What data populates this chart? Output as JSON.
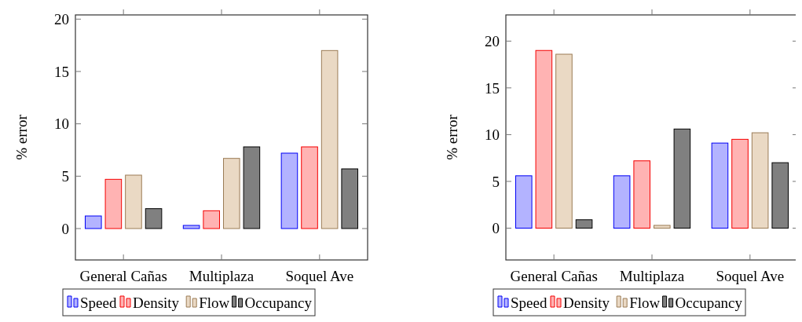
{
  "chart_data": [
    {
      "type": "bar",
      "ylabel": "% error",
      "categories": [
        "General Cañas",
        "Multiplaza",
        "Soquel Ave"
      ],
      "ylim": [
        -3,
        20.4
      ],
      "yticks": [
        0,
        5,
        10,
        15,
        20
      ],
      "legend": "bottom",
      "grid": false,
      "series": [
        {
          "name": "Speed",
          "color": "#b3b3ff",
          "values": [
            1.2,
            0.3,
            7.2
          ]
        },
        {
          "name": "Density",
          "color": "#ffb3b3",
          "values": [
            4.7,
            1.7,
            7.8
          ]
        },
        {
          "name": "Flow",
          "color": "#ead9c4",
          "values": [
            5.1,
            6.7,
            17
          ]
        },
        {
          "name": "Occupancy",
          "color": "#808080",
          "values": [
            1.9,
            7.8,
            5.7
          ]
        }
      ]
    },
    {
      "type": "bar",
      "ylabel": "% error",
      "categories": [
        "General Cañas",
        "Multiplaza",
        "Soquel Ave"
      ],
      "ylim": [
        -3.4,
        22.8
      ],
      "yticks": [
        0,
        5,
        10,
        15,
        20
      ],
      "legend": "bottom",
      "grid": false,
      "series": [
        {
          "name": "Speed",
          "color": "#b3b3ff",
          "values": [
            5.6,
            5.6,
            9.1
          ]
        },
        {
          "name": "Density",
          "color": "#ffb3b3",
          "values": [
            19.0,
            7.2,
            9.5
          ]
        },
        {
          "name": "Flow",
          "color": "#ead9c4",
          "values": [
            18.6,
            0.3,
            10.2
          ]
        },
        {
          "name": "Occupancy",
          "color": "#808080",
          "values": [
            0.9,
            10.6,
            7.0
          ]
        }
      ]
    }
  ]
}
